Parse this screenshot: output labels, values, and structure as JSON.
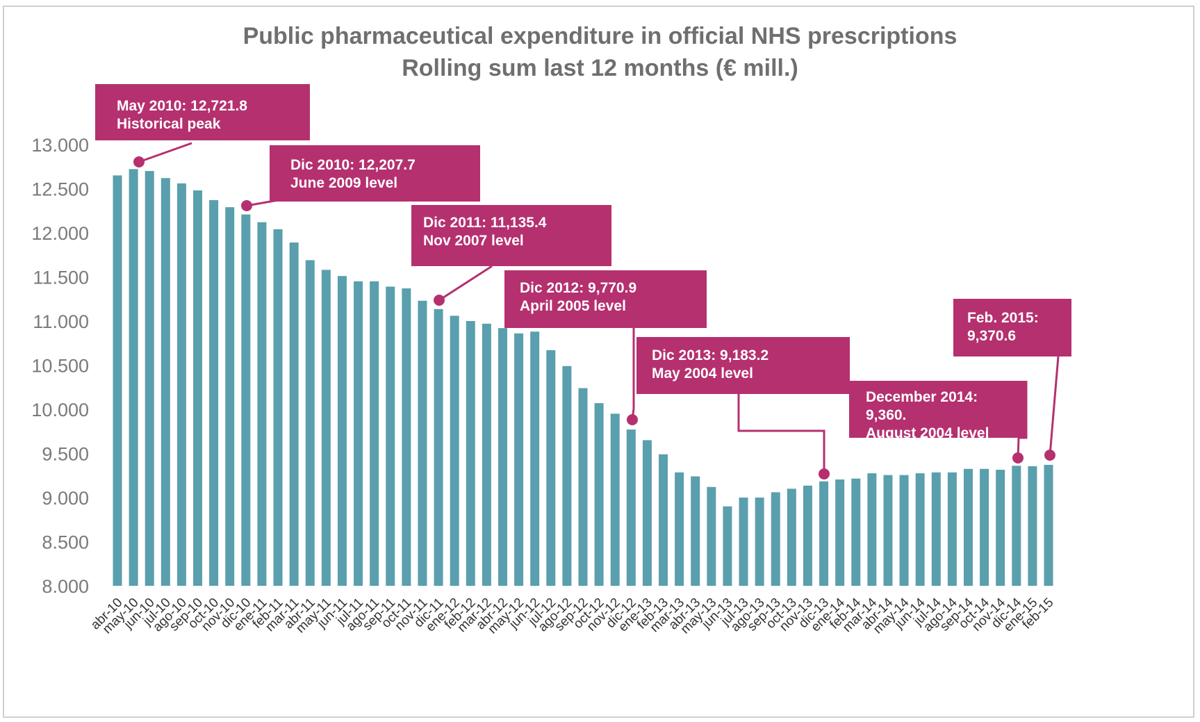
{
  "chart_data": {
    "type": "bar",
    "title": "Public pharmaceutical expenditure in official NHS prescriptions",
    "subtitle": "Rolling sum last 12 months (€ mill.)",
    "xlabel": "",
    "ylabel": "",
    "ylim": [
      8000,
      13000
    ],
    "yticks": [
      "8.000",
      "8.500",
      "9.000",
      "9.500",
      "10.000",
      "10.500",
      "11.000",
      "11.500",
      "12.000",
      "12.500",
      "13.000"
    ],
    "ytick_values": [
      8000,
      8500,
      9000,
      9500,
      10000,
      10500,
      11000,
      11500,
      12000,
      12500,
      13000
    ],
    "grid": false,
    "bar_color": "#5a9fad",
    "categories": [
      "abr-10",
      "may-10",
      "jun-10",
      "jul-10",
      "ago-10",
      "sep-10",
      "oct-10",
      "nov-10",
      "dic-10",
      "ene-11",
      "feb-11",
      "mar-11",
      "abr-11",
      "may-11",
      "jun-11",
      "jul-11",
      "ago-11",
      "sep-11",
      "oct-11",
      "nov-11",
      "dic-11",
      "ene-12",
      "feb-12",
      "mar-12",
      "abr-12",
      "may-12",
      "jun-12",
      "jul-12",
      "ago-12",
      "sep-12",
      "oct-12",
      "nov-12",
      "dic-12",
      "ene-13",
      "feb-13",
      "mar-13",
      "abr-13",
      "may-13",
      "jun-13",
      "jul-13",
      "ago-13",
      "sep-13",
      "oct-13",
      "nov-13",
      "dic-13",
      "ene-14",
      "feb-14",
      "mar-14",
      "abr-14",
      "may-14",
      "jun-14",
      "jul-14",
      "ago-14",
      "sep-14",
      "oct-14",
      "nov-14",
      "dic-14",
      "ene-15",
      "feb-15"
    ],
    "values": [
      12650,
      12721.8,
      12700,
      12620,
      12560,
      12480,
      12370,
      12290,
      12207.7,
      12120,
      12040,
      11890,
      11690,
      11580,
      11510,
      11450,
      11450,
      11390,
      11370,
      11230,
      11135.4,
      11060,
      11000,
      10970,
      10920,
      10860,
      10880,
      10670,
      10490,
      10240,
      10070,
      9950,
      9770.9,
      9650,
      9490,
      9285,
      9240,
      9120,
      8900,
      9000,
      9000,
      9060,
      9100,
      9135,
      9183.2,
      9205,
      9215,
      9275,
      9255,
      9255,
      9275,
      9285,
      9285,
      9325,
      9325,
      9315,
      9360,
      9355,
      9370.6
    ],
    "annotations": [
      {
        "lines": [
          "May 2010: 12,721.8",
          "Historical peak"
        ],
        "category": "may-10",
        "value": 12721.8
      },
      {
        "lines": [
          "Dic 2010: 12,207.7",
          "June 2009 level"
        ],
        "category": "dic-10",
        "value": 12207.7
      },
      {
        "lines": [
          "Dic 2011: 11,135.4",
          "Nov 2007 level"
        ],
        "category": "dic-11",
        "value": 11135.4
      },
      {
        "lines": [
          "Dic 2012: 9,770.9",
          "April 2005 level"
        ],
        "category": "dic-12",
        "value": 9770.9
      },
      {
        "lines": [
          "Dic 2013: 9,183.2",
          "May 2004 level"
        ],
        "category": "dic-13",
        "value": 9183.2
      },
      {
        "lines": [
          "December 2014:",
          "9,360.",
          "August 2004 level"
        ],
        "category": "dic-14",
        "value": 9360
      },
      {
        "lines": [
          "Feb. 2015:",
          "9,370.6"
        ],
        "category": "feb-15",
        "value": 9370.6
      }
    ],
    "annotation_color": "#b5306f"
  }
}
